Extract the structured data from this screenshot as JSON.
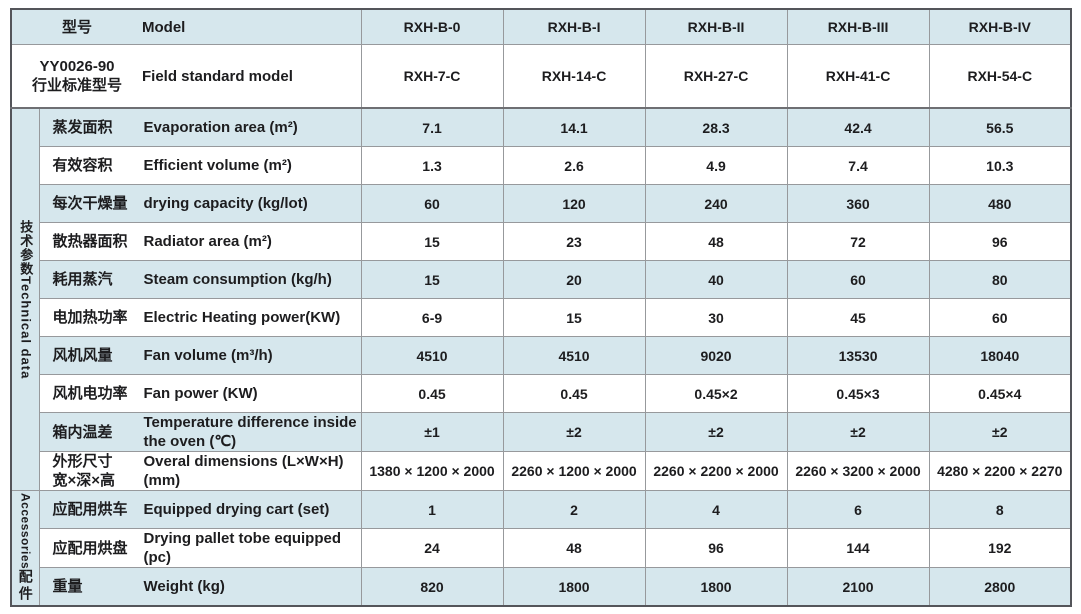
{
  "table": {
    "header_rows": [
      {
        "zh": "型号",
        "en": "Model",
        "values": [
          "RXH-B-0",
          "RXH-B-I",
          "RXH-B-II",
          "RXH-B-III",
          "RXH-B-IV"
        ]
      },
      {
        "zh": "YY0026-90\n行业标准型号",
        "en": "Field standard model",
        "values": [
          "RXH-7-C",
          "RXH-14-C",
          "RXH-27-C",
          "RXH-41-C",
          "RXH-54-C"
        ]
      }
    ],
    "sections": [
      {
        "label_zh": "技术参数",
        "label_en": "Technical data",
        "rows": [
          {
            "zh": "蒸发面积",
            "en": "Evaporation area (m²)",
            "values": [
              "7.1",
              "14.1",
              "28.3",
              "42.4",
              "56.5"
            ]
          },
          {
            "zh": "有效容积",
            "en": "Efficient volume (m²)",
            "values": [
              "1.3",
              "2.6",
              "4.9",
              "7.4",
              "10.3"
            ]
          },
          {
            "zh": "每次干燥量",
            "en": "drying capacity (kg/lot)",
            "values": [
              "60",
              "120",
              "240",
              "360",
              "480"
            ]
          },
          {
            "zh": "散热器面积",
            "en": "Radiator area (m²)",
            "values": [
              "15",
              "23",
              "48",
              "72",
              "96"
            ]
          },
          {
            "zh": "耗用蒸汽",
            "en": "Steam consumption (kg/h)",
            "values": [
              "15",
              "20",
              "40",
              "60",
              "80"
            ]
          },
          {
            "zh": "电加热功率",
            "en": "Electric Heating power(KW)",
            "values": [
              "6-9",
              "15",
              "30",
              "45",
              "60"
            ]
          },
          {
            "zh": "风机风量",
            "en": "Fan volume (m³/h)",
            "values": [
              "4510",
              "4510",
              "9020",
              "13530",
              "18040"
            ]
          },
          {
            "zh": "风机电功率",
            "en": "Fan power (KW)",
            "values": [
              "0.45",
              "0.45",
              "0.45×2",
              "0.45×3",
              "0.45×4"
            ]
          },
          {
            "zh": "箱内温差",
            "en": "Temperature difference inside the oven (℃)",
            "values": [
              "±1",
              "±2",
              "±2",
              "±2",
              "±2"
            ]
          },
          {
            "zh": "外形尺寸\n宽×深×高",
            "en": "Overal dimensions\n(L×W×H)(mm)",
            "values": [
              "1380 × 1200 × 2000",
              "2260 × 1200 × 2000",
              "2260 × 2200 × 2000",
              "2260 × 3200 × 2000",
              "4280 × 2200 × 2270"
            ]
          }
        ]
      },
      {
        "label_zh": "配件",
        "label_en": "Accessories",
        "rows": [
          {
            "zh": "应配用烘车",
            "en": "Equipped drying cart (set)",
            "values": [
              "1",
              "2",
              "4",
              "6",
              "8"
            ]
          },
          {
            "zh": "应配用烘盘",
            "en": "Drying pallet tobe equipped (pc)",
            "values": [
              "24",
              "48",
              "96",
              "144",
              "192"
            ]
          },
          {
            "zh": "重量",
            "en": "Weight (kg)",
            "values": [
              "820",
              "1800",
              "1800",
              "2100",
              "2800"
            ]
          }
        ]
      }
    ]
  },
  "colors": {
    "row_shade": "#d6e7ed",
    "row_white": "#ffffff",
    "border_outer": "#54555a",
    "border_inner": "#97999c",
    "text": "#1d1d1f"
  }
}
